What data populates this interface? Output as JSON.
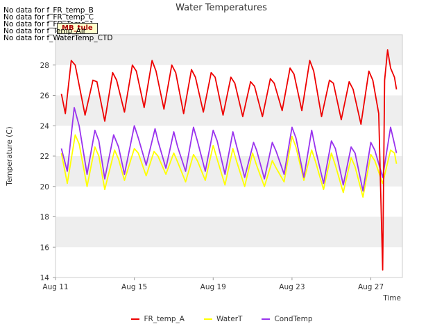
{
  "no_data_messages": [
    "No data for f_FR_temp_B",
    "No data for f_FR_temp_C",
    "No data for f_FD_Temp_1",
    "No data for f_Temp_Air",
    "No data for f_WaterTemp_CTD"
  ],
  "annotation_box": "MB_tule",
  "colors": {
    "FR_temp_A": "#ee0000",
    "WaterT": "#ffff00",
    "CondTemp": "#9933ee",
    "band": "#eeeeee",
    "plot_bg": "#ffffff"
  },
  "chart_data": {
    "type": "line",
    "title": "Water Temperatures",
    "xlabel": "Time",
    "ylabel": "Temperature (C)",
    "x_start_day": 11,
    "x_end_day": 28.6,
    "xticks": [
      {
        "day": 11,
        "label": "Aug 11"
      },
      {
        "day": 15,
        "label": "Aug 15"
      },
      {
        "day": 19,
        "label": "Aug 19"
      },
      {
        "day": 23,
        "label": "Aug 23"
      },
      {
        "day": 27,
        "label": "Aug 27"
      }
    ],
    "yticks": [
      14,
      16,
      18,
      20,
      22,
      24,
      26,
      28
    ],
    "ylim": [
      14,
      30
    ],
    "legend_position": "bottom",
    "series": [
      {
        "name": "FR_temp_A",
        "color": "#ee0000",
        "points": [
          [
            11.3,
            26.1
          ],
          [
            11.5,
            24.8
          ],
          [
            11.8,
            28.3
          ],
          [
            12.0,
            28.0
          ],
          [
            12.5,
            24.7
          ],
          [
            12.9,
            27.0
          ],
          [
            13.1,
            26.9
          ],
          [
            13.5,
            24.3
          ],
          [
            13.9,
            27.5
          ],
          [
            14.1,
            27.0
          ],
          [
            14.5,
            24.9
          ],
          [
            14.9,
            28.0
          ],
          [
            15.1,
            27.6
          ],
          [
            15.5,
            25.2
          ],
          [
            15.9,
            28.3
          ],
          [
            16.1,
            27.6
          ],
          [
            16.5,
            25.1
          ],
          [
            16.9,
            28.0
          ],
          [
            17.1,
            27.5
          ],
          [
            17.5,
            24.8
          ],
          [
            17.9,
            27.7
          ],
          [
            18.1,
            27.2
          ],
          [
            18.5,
            24.9
          ],
          [
            18.9,
            27.5
          ],
          [
            19.1,
            27.2
          ],
          [
            19.5,
            24.7
          ],
          [
            19.9,
            27.2
          ],
          [
            20.1,
            26.8
          ],
          [
            20.5,
            24.6
          ],
          [
            20.9,
            26.9
          ],
          [
            21.1,
            26.6
          ],
          [
            21.5,
            24.6
          ],
          [
            21.9,
            27.1
          ],
          [
            22.1,
            26.8
          ],
          [
            22.5,
            25.0
          ],
          [
            22.9,
            27.8
          ],
          [
            23.1,
            27.4
          ],
          [
            23.5,
            25.0
          ],
          [
            23.9,
            28.3
          ],
          [
            24.1,
            27.6
          ],
          [
            24.5,
            24.6
          ],
          [
            24.9,
            27.0
          ],
          [
            25.1,
            26.8
          ],
          [
            25.5,
            24.4
          ],
          [
            25.9,
            26.9
          ],
          [
            26.1,
            26.4
          ],
          [
            26.5,
            24.1
          ],
          [
            26.9,
            27.6
          ],
          [
            27.1,
            27.0
          ],
          [
            27.4,
            24.8
          ],
          [
            27.6,
            14.5
          ],
          [
            27.7,
            27.0
          ],
          [
            27.85,
            29.0
          ],
          [
            28.0,
            27.8
          ],
          [
            28.2,
            27.2
          ],
          [
            28.3,
            26.4
          ]
        ]
      },
      {
        "name": "WaterT",
        "color": "#ffff00",
        "points": [
          [
            11.3,
            22.2
          ],
          [
            11.6,
            20.2
          ],
          [
            12.0,
            23.4
          ],
          [
            12.2,
            22.8
          ],
          [
            12.6,
            20.0
          ],
          [
            13.0,
            22.6
          ],
          [
            13.2,
            22.0
          ],
          [
            13.5,
            19.8
          ],
          [
            14.0,
            22.4
          ],
          [
            14.2,
            21.8
          ],
          [
            14.5,
            20.4
          ],
          [
            15.0,
            22.5
          ],
          [
            15.2,
            22.2
          ],
          [
            15.6,
            20.7
          ],
          [
            16.0,
            22.3
          ],
          [
            16.2,
            22.0
          ],
          [
            16.6,
            20.8
          ],
          [
            17.0,
            22.2
          ],
          [
            17.2,
            21.6
          ],
          [
            17.6,
            20.3
          ],
          [
            18.0,
            22.1
          ],
          [
            18.2,
            21.7
          ],
          [
            18.6,
            20.4
          ],
          [
            19.0,
            22.7
          ],
          [
            19.2,
            21.8
          ],
          [
            19.6,
            20.1
          ],
          [
            20.0,
            22.5
          ],
          [
            20.2,
            21.6
          ],
          [
            20.6,
            20.0
          ],
          [
            21.0,
            22.2
          ],
          [
            21.2,
            21.4
          ],
          [
            21.6,
            20.0
          ],
          [
            22.0,
            21.7
          ],
          [
            22.2,
            21.2
          ],
          [
            22.6,
            20.3
          ],
          [
            23.0,
            23.3
          ],
          [
            23.2,
            22.6
          ],
          [
            23.6,
            20.4
          ],
          [
            24.0,
            22.4
          ],
          [
            24.2,
            21.6
          ],
          [
            24.6,
            19.8
          ],
          [
            25.0,
            22.2
          ],
          [
            25.2,
            21.4
          ],
          [
            25.6,
            19.6
          ],
          [
            26.0,
            21.9
          ],
          [
            26.2,
            21.3
          ],
          [
            26.6,
            19.3
          ],
          [
            27.0,
            22.1
          ],
          [
            27.2,
            21.7
          ],
          [
            27.6,
            20.2
          ],
          [
            28.0,
            22.4
          ],
          [
            28.2,
            22.2
          ],
          [
            28.3,
            21.5
          ]
        ]
      },
      {
        "name": "CondTemp",
        "color": "#9933ee",
        "points": [
          [
            11.3,
            22.5
          ],
          [
            11.6,
            21.0
          ],
          [
            11.95,
            25.2
          ],
          [
            12.2,
            24.0
          ],
          [
            12.6,
            20.8
          ],
          [
            13.0,
            23.7
          ],
          [
            13.2,
            23.0
          ],
          [
            13.5,
            20.5
          ],
          [
            13.95,
            23.4
          ],
          [
            14.2,
            22.6
          ],
          [
            14.5,
            20.8
          ],
          [
            15.0,
            24.0
          ],
          [
            15.2,
            23.2
          ],
          [
            15.6,
            21.4
          ],
          [
            16.05,
            23.8
          ],
          [
            16.2,
            23.0
          ],
          [
            16.6,
            21.2
          ],
          [
            17.0,
            23.6
          ],
          [
            17.2,
            22.6
          ],
          [
            17.6,
            21.0
          ],
          [
            18.0,
            23.9
          ],
          [
            18.2,
            23.0
          ],
          [
            18.6,
            21.0
          ],
          [
            19.0,
            23.7
          ],
          [
            19.2,
            23.0
          ],
          [
            19.6,
            20.8
          ],
          [
            20.0,
            23.6
          ],
          [
            20.2,
            22.6
          ],
          [
            20.6,
            20.6
          ],
          [
            21.05,
            22.9
          ],
          [
            21.2,
            22.4
          ],
          [
            21.6,
            20.5
          ],
          [
            22.0,
            22.9
          ],
          [
            22.2,
            22.3
          ],
          [
            22.6,
            20.8
          ],
          [
            23.0,
            23.9
          ],
          [
            23.2,
            23.2
          ],
          [
            23.6,
            20.6
          ],
          [
            24.0,
            23.7
          ],
          [
            24.2,
            22.4
          ],
          [
            24.6,
            20.2
          ],
          [
            25.0,
            23.0
          ],
          [
            25.2,
            22.5
          ],
          [
            25.6,
            20.1
          ],
          [
            26.0,
            22.6
          ],
          [
            26.2,
            22.2
          ],
          [
            26.6,
            19.7
          ],
          [
            27.0,
            22.9
          ],
          [
            27.2,
            22.4
          ],
          [
            27.6,
            20.6
          ],
          [
            28.0,
            23.9
          ],
          [
            28.2,
            22.8
          ],
          [
            28.3,
            22.2
          ]
        ]
      }
    ]
  }
}
